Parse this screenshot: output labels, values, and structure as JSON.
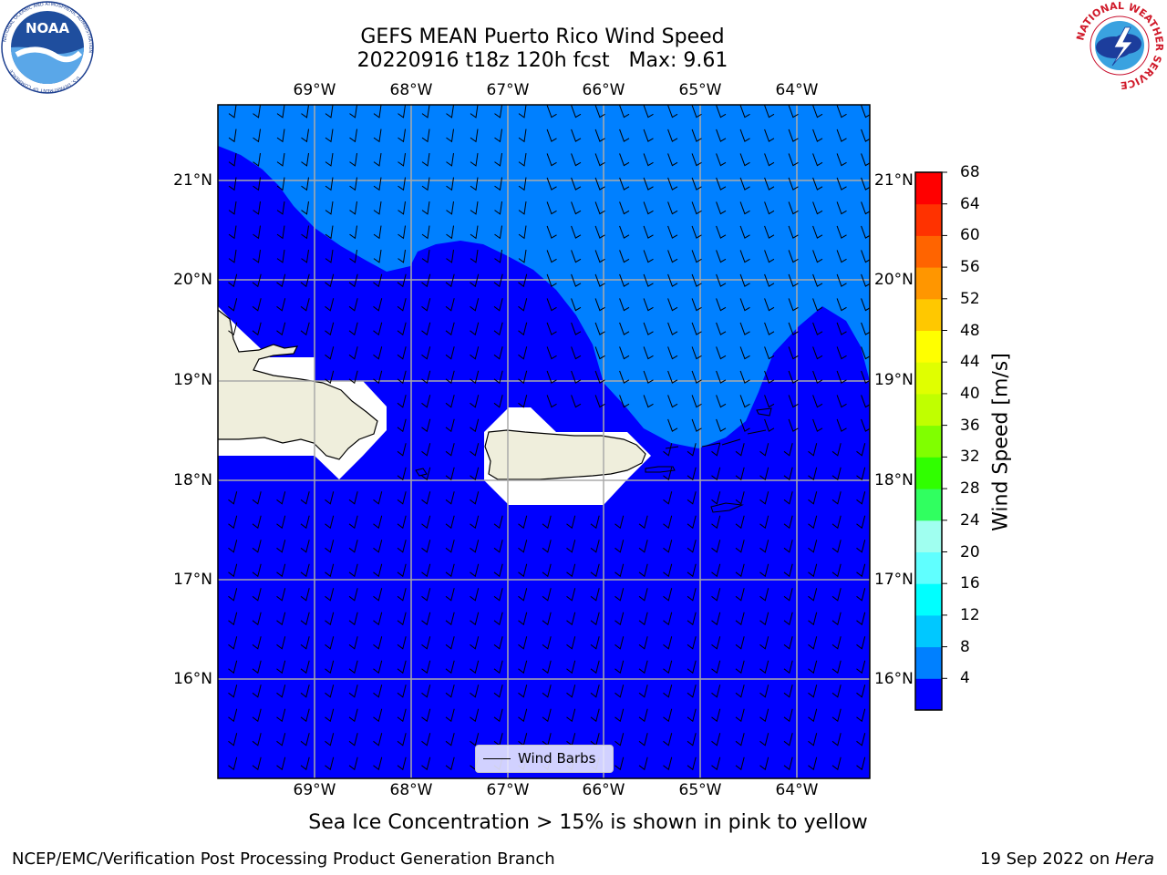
{
  "header": {
    "title_line1": "GEFS MEAN Puerto Rico Wind Speed",
    "title_line2": "20220916 t18z 120h fcst   Max: 9.61"
  },
  "logos": {
    "noaa_text": "NOAA",
    "noaa_ring_text": "NATIONAL OCEANIC AND ATMOSPHERIC ADMINISTRATION",
    "noaa_ring_bottom": "U.S. DEPARTMENT OF COMMERCE",
    "nws_ring_text": "NATIONAL WEATHER SERVICE"
  },
  "map": {
    "lon_labels": [
      "69°W",
      "68°W",
      "67°W",
      "66°W",
      "65°W",
      "64°W"
    ],
    "lat_labels": [
      "21°N",
      "20°N",
      "19°N",
      "18°N",
      "17°N",
      "16°N"
    ],
    "land_color": "#efeedc",
    "legend_label": "Wind Barbs"
  },
  "colorbar": {
    "title": "Wind Speed [m/s]",
    "ticks": [
      "68",
      "64",
      "60",
      "56",
      "52",
      "48",
      "44",
      "40",
      "36",
      "32",
      "28",
      "24",
      "20",
      "16",
      "12",
      "8",
      "4"
    ],
    "colors_low_to_high": [
      "#0000ff",
      "#0080ff",
      "#00c8ff",
      "#00ffff",
      "#60ffff",
      "#a0fff0",
      "#30ff60",
      "#30ff00",
      "#80ff00",
      "#c0ff00",
      "#e0ff00",
      "#ffff00",
      "#ffc800",
      "#ff9600",
      "#ff6400",
      "#ff3200",
      "#ff0000"
    ]
  },
  "note": "Sea Ice Concentration > 15% is shown in pink to yellow",
  "footer": {
    "left": "NCEP/EMC/Verification Post Processing Product Generation Branch",
    "right_prefix": "19 Sep 2022 on ",
    "right_machine": "Hera"
  }
}
